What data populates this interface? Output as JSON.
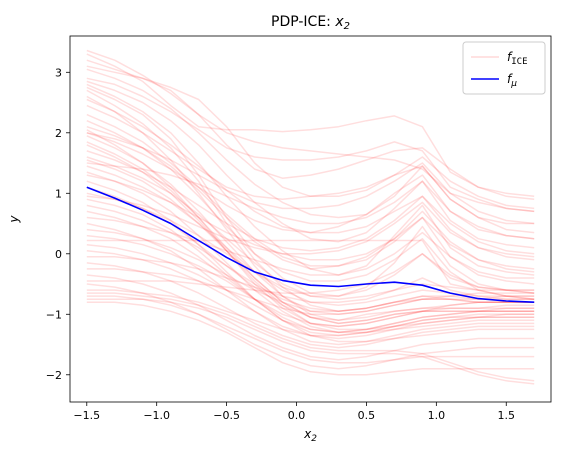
{
  "chart_data": {
    "type": "line",
    "title_main": "PDP-ICE: ",
    "title_var": "x",
    "title_sub": "2",
    "xlabel_var": "x",
    "xlabel_sub": "2",
    "ylabel": "y",
    "xlim": [
      -1.62,
      1.82
    ],
    "ylim": [
      -2.45,
      3.6
    ],
    "xticks": [
      -1.5,
      -1.0,
      -0.5,
      0.0,
      0.5,
      1.0,
      1.5
    ],
    "xtick_labels": [
      "−1.5",
      "−1.0",
      "−0.5",
      "0.0",
      "0.5",
      "1.0",
      "1.5"
    ],
    "yticks": [
      -2,
      -1,
      0,
      1,
      2,
      3
    ],
    "ytick_labels": [
      "−2",
      "−1",
      "0",
      "1",
      "2",
      "3"
    ],
    "grid": false,
    "legend_position": "top-right",
    "legend": [
      {
        "base": "f",
        "sub": "ICE",
        "sub_mono": true,
        "color": "#ff0000",
        "alpha": 0.15
      },
      {
        "base": "f",
        "sub": "μ",
        "sub_mono": false,
        "color": "#0000ff",
        "alpha": 1
      }
    ],
    "x": [
      -1.5,
      -1.3,
      -1.1,
      -0.9,
      -0.7,
      -0.5,
      -0.3,
      -0.1,
      0.1,
      0.3,
      0.5,
      0.7,
      0.9,
      1.1,
      1.3,
      1.5,
      1.7
    ],
    "series": [
      {
        "name": "f_μ",
        "color": "#0000ff",
        "values": [
          1.1,
          0.92,
          0.72,
          0.5,
          0.22,
          -0.06,
          -0.3,
          -0.44,
          -0.52,
          -0.54,
          -0.5,
          -0.47,
          -0.52,
          -0.65,
          -0.74,
          -0.78,
          -0.8
        ]
      }
    ],
    "ice_color": "#ff0000",
    "ice_alpha": 0.13,
    "ice_curves": [
      [
        3.36,
        3.2,
        2.95,
        2.65,
        2.3,
        2.0,
        1.85,
        1.75,
        1.7,
        1.65,
        1.6,
        1.55,
        1.4,
        1.0,
        0.85,
        0.75,
        0.7
      ],
      [
        3.3,
        3.1,
        2.85,
        2.45,
        2.1,
        2.05,
        2.05,
        2.02,
        2.05,
        2.1,
        2.2,
        2.28,
        2.1,
        1.35,
        1.1,
        0.95,
        0.9
      ],
      [
        3.2,
        3.05,
        2.9,
        2.7,
        2.3,
        1.8,
        1.4,
        1.25,
        1.3,
        1.4,
        1.55,
        1.7,
        1.75,
        1.4,
        1.1,
        1.0,
        0.95
      ],
      [
        3.1,
        3.0,
        2.9,
        2.75,
        2.55,
        2.1,
        1.5,
        1.1,
        0.95,
        0.95,
        1.05,
        1.3,
        1.6,
        1.2,
        0.95,
        0.8,
        0.75
      ],
      [
        3.05,
        2.9,
        2.7,
        2.4,
        2.0,
        1.55,
        1.15,
        0.85,
        0.65,
        0.6,
        0.65,
        0.95,
        1.45,
        0.9,
        0.6,
        0.5,
        0.5
      ],
      [
        2.85,
        2.7,
        2.5,
        2.2,
        1.8,
        1.3,
        0.85,
        0.5,
        0.25,
        0.2,
        0.35,
        0.75,
        1.2,
        0.55,
        0.25,
        0.15,
        0.1
      ],
      [
        2.8,
        2.6,
        2.35,
        2.0,
        1.5,
        0.95,
        0.45,
        0.05,
        -0.25,
        -0.35,
        -0.2,
        0.3,
        0.8,
        0.1,
        -0.2,
        -0.3,
        -0.35
      ],
      [
        2.75,
        2.55,
        2.3,
        1.9,
        1.3,
        0.6,
        0.0,
        -0.4,
        -0.65,
        -0.7,
        -0.55,
        -0.15,
        0.45,
        -0.2,
        -0.5,
        -0.6,
        -0.65
      ],
      [
        2.7,
        2.45,
        2.15,
        1.75,
        1.2,
        0.5,
        -0.1,
        -0.55,
        -0.85,
        -0.95,
        -0.9,
        -0.8,
        -0.75,
        -0.75,
        -0.75,
        -0.7,
        -0.7
      ],
      [
        2.6,
        2.35,
        2.0,
        1.55,
        1.0,
        0.4,
        -0.2,
        -0.7,
        -1.0,
        -1.1,
        -1.0,
        -0.95,
        -0.9,
        -0.85,
        -0.8,
        -0.8,
        -0.8
      ],
      [
        2.55,
        2.35,
        2.1,
        1.8,
        1.45,
        1.05,
        0.7,
        0.45,
        0.35,
        0.35,
        0.45,
        0.7,
        0.95,
        0.5,
        0.2,
        0.05,
        0.0
      ],
      [
        2.45,
        2.25,
        2.0,
        1.7,
        1.4,
        1.1,
        0.95,
        0.9,
        0.95,
        1.0,
        1.1,
        1.3,
        1.45,
        0.9,
        0.6,
        0.4,
        0.35
      ],
      [
        2.3,
        2.1,
        1.85,
        1.5,
        1.1,
        0.65,
        0.25,
        -0.05,
        -0.2,
        -0.2,
        -0.1,
        0.2,
        0.6,
        -0.05,
        -0.35,
        -0.45,
        -0.5
      ],
      [
        2.2,
        2.0,
        1.75,
        1.4,
        0.95,
        0.45,
        0.0,
        -0.3,
        -0.45,
        -0.45,
        -0.35,
        -0.1,
        0.25,
        -0.3,
        -0.6,
        -0.7,
        -0.75
      ],
      [
        2.1,
        1.95,
        1.75,
        1.45,
        1.05,
        0.6,
        0.2,
        -0.1,
        -0.25,
        -0.2,
        -0.05,
        0.25,
        0.7,
        0.2,
        -0.1,
        -0.25,
        -0.3
      ],
      [
        2.05,
        1.8,
        1.5,
        1.1,
        0.6,
        0.05,
        -0.5,
        -0.9,
        -1.15,
        -1.2,
        -1.15,
        -1.05,
        -0.95,
        -0.85,
        -0.8,
        -0.8,
        -0.8
      ],
      [
        2.0,
        1.85,
        1.65,
        1.4,
        1.1,
        0.8,
        0.55,
        0.4,
        0.35,
        0.45,
        0.65,
        1.0,
        1.3,
        0.7,
        0.45,
        0.3,
        0.25
      ],
      [
        1.95,
        1.75,
        1.5,
        1.15,
        0.7,
        0.2,
        -0.3,
        -0.7,
        -0.95,
        -1.0,
        -0.95,
        -0.85,
        -0.75,
        -0.7,
        -0.65,
        -0.65,
        -0.65
      ],
      [
        1.85,
        1.65,
        1.4,
        1.05,
        0.6,
        0.1,
        -0.4,
        -0.8,
        -1.05,
        -1.15,
        -1.1,
        -1.0,
        -0.95,
        -0.9,
        -0.9,
        -0.9,
        -0.9
      ],
      [
        1.8,
        1.6,
        1.35,
        1.0,
        0.55,
        0.05,
        -0.45,
        -0.85,
        -1.15,
        -1.25,
        -1.25,
        -1.2,
        -1.15,
        -1.1,
        -1.05,
        -1.0,
        -1.0
      ],
      [
        1.7,
        1.55,
        1.35,
        1.1,
        0.8,
        0.5,
        0.25,
        0.1,
        0.05,
        0.1,
        0.25,
        0.55,
        0.95,
        0.4,
        0.1,
        0.0,
        -0.05
      ],
      [
        1.6,
        1.45,
        1.25,
        1.0,
        0.65,
        0.25,
        -0.15,
        -0.5,
        -0.7,
        -0.75,
        -0.7,
        -0.6,
        -0.5,
        -0.55,
        -0.6,
        -0.6,
        -0.6
      ],
      [
        1.55,
        1.4,
        1.2,
        0.9,
        0.5,
        0.05,
        -0.4,
        -0.8,
        -1.05,
        -1.15,
        -1.1,
        -1.0,
        -0.95,
        -0.95,
        -0.95,
        -0.95,
        -0.95
      ],
      [
        1.45,
        1.3,
        1.1,
        0.85,
        0.5,
        0.1,
        -0.3,
        -0.6,
        -0.8,
        -0.85,
        -0.8,
        -0.7,
        -0.6,
        -0.65,
        -0.7,
        -0.7,
        -0.7
      ],
      [
        1.35,
        1.2,
        1.0,
        0.7,
        0.3,
        -0.15,
        -0.6,
        -0.95,
        -1.2,
        -1.3,
        -1.3,
        -1.25,
        -1.2,
        -1.15,
        -1.1,
        -1.1,
        -1.1
      ],
      [
        1.3,
        1.2,
        1.05,
        0.85,
        0.6,
        0.35,
        0.15,
        0.0,
        -0.1,
        -0.1,
        0.0,
        0.25,
        0.6,
        0.15,
        -0.1,
        -0.2,
        -0.25
      ],
      [
        1.2,
        1.05,
        0.85,
        0.55,
        0.15,
        -0.3,
        -0.75,
        -1.1,
        -1.35,
        -1.45,
        -1.45,
        -1.4,
        -1.35,
        -1.3,
        -1.25,
        -1.25,
        -1.25
      ],
      [
        1.1,
        0.95,
        0.75,
        0.5,
        0.15,
        -0.2,
        -0.55,
        -0.85,
        -1.05,
        -1.1,
        -1.05,
        -0.95,
        -0.9,
        -0.9,
        -0.9,
        -0.85,
        -0.85
      ],
      [
        1.0,
        0.9,
        0.75,
        0.55,
        0.3,
        0.0,
        -0.3,
        -0.55,
        -0.7,
        -0.7,
        -0.6,
        -0.35,
        0.0,
        -0.35,
        -0.55,
        -0.6,
        -0.65
      ],
      [
        0.9,
        0.8,
        0.65,
        0.4,
        0.05,
        -0.35,
        -0.75,
        -1.1,
        -1.3,
        -1.35,
        -1.3,
        -1.2,
        -1.1,
        -1.05,
        -1.0,
        -1.0,
        -1.0
      ],
      [
        0.8,
        0.7,
        0.55,
        0.35,
        0.1,
        -0.2,
        -0.5,
        -0.75,
        -0.9,
        -0.95,
        -0.9,
        -0.8,
        -0.7,
        -0.75,
        -0.8,
        -0.8,
        -0.8
      ],
      [
        0.7,
        0.6,
        0.45,
        0.25,
        -0.05,
        -0.4,
        -0.75,
        -1.05,
        -1.25,
        -1.3,
        -1.25,
        -1.15,
        -1.05,
        -1.0,
        -0.95,
        -0.95,
        -0.95
      ],
      [
        0.6,
        0.55,
        0.45,
        0.35,
        0.2,
        0.05,
        -0.1,
        -0.25,
        -0.35,
        -0.35,
        -0.25,
        0.0,
        0.35,
        -0.05,
        -0.3,
        -0.4,
        -0.4
      ],
      [
        0.5,
        0.4,
        0.25,
        0.05,
        -0.25,
        -0.6,
        -0.95,
        -1.25,
        -1.45,
        -1.5,
        -1.45,
        -1.35,
        -1.25,
        -1.2,
        -1.15,
        -1.15,
        -1.15
      ],
      [
        0.4,
        0.35,
        0.25,
        0.1,
        -0.1,
        -0.35,
        -0.6,
        -0.8,
        -0.95,
        -0.95,
        -0.9,
        -0.8,
        -0.7,
        -0.7,
        -0.75,
        -0.75,
        -0.75
      ],
      [
        0.3,
        0.25,
        0.15,
        0.0,
        -0.2,
        -0.45,
        -0.75,
        -1.0,
        -1.15,
        -1.2,
        -1.15,
        -1.05,
        -0.95,
        -0.95,
        -0.95,
        -0.9,
        -0.9
      ],
      [
        0.22,
        0.22,
        0.22,
        0.22,
        0.22,
        0.22,
        0.22,
        0.22,
        0.22,
        0.22,
        0.22,
        0.22,
        0.22,
        -0.5,
        -0.6,
        -0.7,
        -0.75
      ],
      [
        0.15,
        0.1,
        0.0,
        -0.15,
        -0.35,
        -0.6,
        -0.85,
        -1.1,
        -1.25,
        -1.3,
        -1.25,
        -1.15,
        -1.05,
        -1.0,
        -0.95,
        -0.95,
        -0.95
      ],
      [
        0.05,
        0.0,
        -0.1,
        -0.25,
        -0.45,
        -0.7,
        -0.95,
        -1.2,
        -1.35,
        -1.4,
        -1.35,
        -1.25,
        -1.15,
        -1.1,
        -1.05,
        -1.05,
        -1.05
      ],
      [
        -0.05,
        -0.05,
        -0.1,
        -0.15,
        -0.25,
        -0.4,
        -0.55,
        -0.7,
        -0.8,
        -0.8,
        -0.75,
        -0.6,
        -0.4,
        -0.6,
        -0.7,
        -0.75,
        -0.75
      ],
      [
        -0.15,
        -0.2,
        -0.3,
        -0.45,
        -0.65,
        -0.9,
        -1.15,
        -1.35,
        -1.5,
        -1.55,
        -1.5,
        -1.4,
        -1.3,
        -1.25,
        -1.2,
        -1.2,
        -1.2
      ],
      [
        -0.25,
        -0.25,
        -0.3,
        -0.35,
        -0.45,
        -0.6,
        -0.75,
        -0.9,
        -1.0,
        -1.0,
        -0.95,
        -0.85,
        -0.75,
        -0.75,
        -0.8,
        -0.8,
        -0.8
      ],
      [
        -0.35,
        -0.4,
        -0.5,
        -0.65,
        -0.85,
        -1.1,
        -1.35,
        -1.55,
        -1.7,
        -1.75,
        -1.7,
        -1.6,
        -1.5,
        -1.45,
        -1.4,
        -1.4,
        -1.4
      ],
      [
        -0.45,
        -0.45,
        -0.45,
        -0.45,
        -0.5,
        -0.55,
        -0.6,
        -0.65,
        -0.65,
        -0.6,
        -0.5,
        -0.3,
        0.0,
        -0.4,
        -0.55,
        -0.6,
        -0.6
      ],
      [
        -0.5,
        -0.55,
        -0.65,
        -0.8,
        -1.0,
        -1.25,
        -1.5,
        -1.7,
        -1.85,
        -1.9,
        -1.85,
        -1.75,
        -1.65,
        -1.6,
        -1.55,
        -1.55,
        -1.55
      ],
      [
        -0.6,
        -0.6,
        -0.65,
        -0.7,
        -0.8,
        -0.95,
        -1.1,
        -1.25,
        -1.35,
        -1.35,
        -1.3,
        -1.2,
        -1.1,
        -1.05,
        -1.05,
        -1.05,
        -1.05
      ],
      [
        -0.7,
        -0.7,
        -0.75,
        -0.85,
        -1.0,
        -1.2,
        -1.4,
        -1.6,
        -1.75,
        -1.8,
        -1.8,
        -1.75,
        -1.7,
        -1.7,
        -1.7,
        -1.7,
        -1.7
      ],
      [
        -0.8,
        -0.8,
        -0.85,
        -0.95,
        -1.1,
        -1.3,
        -1.55,
        -1.8,
        -1.95,
        -2.0,
        -2.0,
        -1.95,
        -1.9,
        -1.9,
        -1.9,
        -1.9,
        -1.9
      ],
      [
        -0.75,
        -0.75,
        -0.75,
        -0.8,
        -0.9,
        -1.05,
        -1.25,
        -1.45,
        -1.6,
        -1.65,
        -1.65,
        -1.65,
        -1.7,
        -1.85,
        -2.0,
        -2.1,
        -2.15
      ],
      [
        -0.65,
        -0.65,
        -0.7,
        -0.75,
        -0.85,
        -1.0,
        -1.2,
        -1.4,
        -1.55,
        -1.6,
        -1.6,
        -1.6,
        -1.65,
        -1.8,
        -1.95,
        -2.05,
        -2.1
      ],
      [
        2.9,
        2.8,
        2.6,
        2.35,
        2.05,
        1.75,
        1.6,
        1.55,
        1.55,
        1.6,
        1.7,
        1.85,
        1.7,
        1.1,
        0.9,
        0.75,
        0.7
      ],
      [
        2.0,
        1.9,
        1.75,
        1.55,
        1.3,
        1.05,
        0.85,
        0.75,
        0.75,
        0.8,
        0.95,
        1.2,
        1.5,
        1.0,
        0.7,
        0.55,
        0.5
      ],
      [
        1.5,
        1.45,
        1.4,
        1.3,
        1.15,
        0.95,
        0.75,
        0.6,
        0.5,
        0.5,
        0.6,
        0.85,
        1.2,
        0.7,
        0.4,
        0.3,
        0.25
      ],
      [
        0.95,
        0.9,
        0.8,
        0.65,
        0.45,
        0.25,
        0.1,
        0.0,
        0.0,
        0.05,
        0.2,
        0.5,
        0.85,
        0.35,
        0.1,
        -0.05,
        -0.1
      ]
    ]
  }
}
